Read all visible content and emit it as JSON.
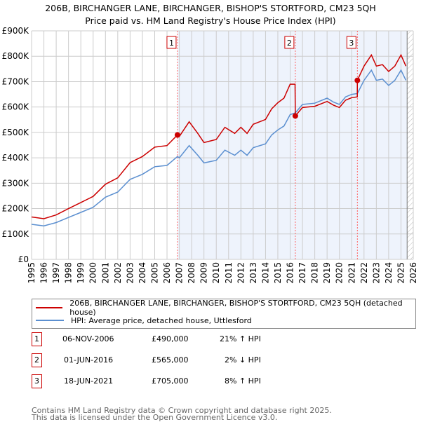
{
  "title": "206B, BIRCHANGER LANE, BIRCHANGER, BISHOP'S STORTFORD, CM23 5QH",
  "subtitle": "Price paid vs. HM Land Registry's House Price Index (HPI)",
  "chart_data": {
    "type": "line",
    "xlim": [
      1995,
      2026
    ],
    "ylim": [
      0,
      900000
    ],
    "yticks": [
      {
        "v": 0,
        "label": "£0"
      },
      {
        "v": 100000,
        "label": "£100K"
      },
      {
        "v": 200000,
        "label": "£200K"
      },
      {
        "v": 300000,
        "label": "£300K"
      },
      {
        "v": 400000,
        "label": "£400K"
      },
      {
        "v": 500000,
        "label": "£500K"
      },
      {
        "v": 600000,
        "label": "£600K"
      },
      {
        "v": 700000,
        "label": "£700K"
      },
      {
        "v": 800000,
        "label": "£800K"
      },
      {
        "v": 900000,
        "label": "£900K"
      }
    ],
    "xticks": [
      "1995",
      "1996",
      "1997",
      "1998",
      "1999",
      "2000",
      "2001",
      "2002",
      "2003",
      "2004",
      "2005",
      "2006",
      "2007",
      "2008",
      "2009",
      "2010",
      "2011",
      "2012",
      "2013",
      "2014",
      "2015",
      "2016",
      "2017",
      "2018",
      "2019",
      "2020",
      "2021",
      "2022",
      "2023",
      "2024",
      "2025",
      "2026"
    ],
    "grid": true,
    "shaded_from": 2006.85,
    "hatched_from": 2025.5,
    "series": [
      {
        "name": "206B, BIRCHANGER LANE, BIRCHANGER, BISHOP'S STORTFORD, CM23 5QH (detached house)",
        "color": "#cc0000",
        "x": [
          1995,
          1996,
          1997,
          1998,
          1999,
          2000,
          2001,
          2002,
          2003,
          2004,
          2005,
          2006,
          2006.85,
          2007,
          2007.8,
          2008.5,
          2009,
          2010,
          2010.7,
          2011.5,
          2012,
          2012.5,
          2013,
          2014,
          2014.5,
          2015,
          2015.5,
          2016,
          2016.4,
          2016.42,
          2017,
          2018,
          2019,
          2019.5,
          2020,
          2020.5,
          2021,
          2021.45,
          2021.46,
          2022,
          2022.6,
          2023,
          2023.5,
          2024,
          2024.5,
          2025,
          2025.4
        ],
        "y": [
          167000,
          160000,
          175000,
          200000,
          224000,
          248000,
          296000,
          321000,
          381000,
          405000,
          442000,
          448000,
          490000,
          484000,
          542000,
          496000,
          460000,
          472000,
          520000,
          496000,
          520000,
          496000,
          532000,
          551000,
          593000,
          617000,
          635000,
          690000,
          690000,
          565000,
          598000,
          603000,
          622000,
          608000,
          598000,
          627000,
          637000,
          640000,
          705000,
          761000,
          805000,
          761000,
          767000,
          740000,
          761000,
          805000,
          761000
        ]
      },
      {
        "name": "HPI: Average price, detached house, Uttlesford",
        "color": "#5b8fd0",
        "x": [
          1995,
          1996,
          1997,
          1998,
          1999,
          2000,
          2001,
          2002,
          2003,
          2004,
          2005,
          2006,
          2006.85,
          2007,
          2007.8,
          2008.5,
          2009,
          2010,
          2010.7,
          2011.5,
          2012,
          2012.5,
          2013,
          2014,
          2014.5,
          2015,
          2015.5,
          2016,
          2016.42,
          2017,
          2018,
          2019,
          2019.5,
          2020,
          2020.5,
          2021,
          2021.46,
          2022,
          2022.6,
          2023,
          2023.5,
          2024,
          2024.5,
          2025,
          2025.4
        ],
        "y": [
          138000,
          132000,
          145000,
          165000,
          185000,
          205000,
          245000,
          265000,
          315000,
          335000,
          365000,
          370000,
          405000,
          400000,
          448000,
          410000,
          380000,
          390000,
          430000,
          410000,
          430000,
          410000,
          440000,
          455000,
          490000,
          510000,
          525000,
          570000,
          577000,
          610000,
          615000,
          635000,
          620000,
          610000,
          640000,
          650000,
          653000,
          705000,
          745000,
          705000,
          710000,
          685000,
          705000,
          745000,
          705000
        ]
      }
    ],
    "sales": [
      {
        "n": "1",
        "x": 2006.85,
        "y": 490000
      },
      {
        "n": "2",
        "x": 2016.42,
        "y": 565000
      },
      {
        "n": "3",
        "x": 2021.46,
        "y": 705000
      }
    ]
  },
  "legend": [
    "206B, BIRCHANGER LANE, BIRCHANGER, BISHOP'S STORTFORD, CM23 5QH (detached house)",
    "HPI: Average price, detached house, Uttlesford"
  ],
  "table": [
    {
      "n": "1",
      "date": "06-NOV-2006",
      "price": "£490,000",
      "hpi": "21% ↑ HPI"
    },
    {
      "n": "2",
      "date": "01-JUN-2016",
      "price": "£565,000",
      "hpi": "2% ↓ HPI"
    },
    {
      "n": "3",
      "date": "18-JUN-2021",
      "price": "£705,000",
      "hpi": "8% ↑ HPI"
    }
  ],
  "footer": [
    "Contains HM Land Registry data © Crown copyright and database right 2025.",
    "This data is licensed under the Open Government Licence v3.0."
  ]
}
